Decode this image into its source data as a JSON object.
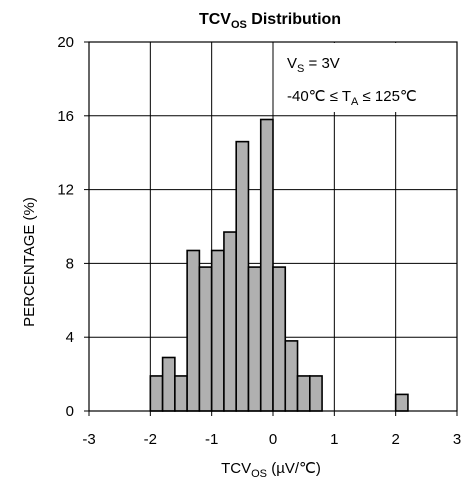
{
  "chart_data": {
    "type": "bar",
    "title": {
      "main": "TCV",
      "sub": "OS",
      "rest": " Distribution"
    },
    "xlabel": {
      "main": "TCV",
      "sub": "OS",
      "rest": " (µV/℃)"
    },
    "ylabel": "PERCENTAGE (%)",
    "xlim": [
      -3,
      3
    ],
    "ylim": [
      0,
      20
    ],
    "x_ticks": [
      "-3",
      "-2",
      "-1",
      "0",
      "1",
      "2",
      "3"
    ],
    "y_ticks": [
      "0",
      "4",
      "8",
      "12",
      "16",
      "20"
    ],
    "grid": true,
    "bin_width": 0.2,
    "bins": [
      {
        "start": -2.0,
        "value": 1.9
      },
      {
        "start": -1.8,
        "value": 2.9
      },
      {
        "start": -1.6,
        "value": 1.9
      },
      {
        "start": -1.4,
        "value": 8.7
      },
      {
        "start": -1.2,
        "value": 7.8
      },
      {
        "start": -1.0,
        "value": 8.7
      },
      {
        "start": -0.8,
        "value": 9.7
      },
      {
        "start": -0.6,
        "value": 14.6
      },
      {
        "start": -0.4,
        "value": 7.8
      },
      {
        "start": -0.2,
        "value": 15.8
      },
      {
        "start": 0.0,
        "value": 7.8
      },
      {
        "start": 0.2,
        "value": 3.8
      },
      {
        "start": 0.4,
        "value": 1.9
      },
      {
        "start": 0.6,
        "value": 1.9
      },
      {
        "start": 2.0,
        "value": 0.9
      }
    ],
    "annotations": {
      "supply": {
        "main": "V",
        "sub": "S",
        "rest": " = 3V"
      },
      "temp": {
        "pre": "-40℃  ≤ T",
        "sub": "A",
        "rest": " ≤ 125℃"
      }
    },
    "colors": {
      "bar_fill": "#b0b0b0",
      "bar_stroke": "#000000",
      "grid": "#000000"
    }
  }
}
